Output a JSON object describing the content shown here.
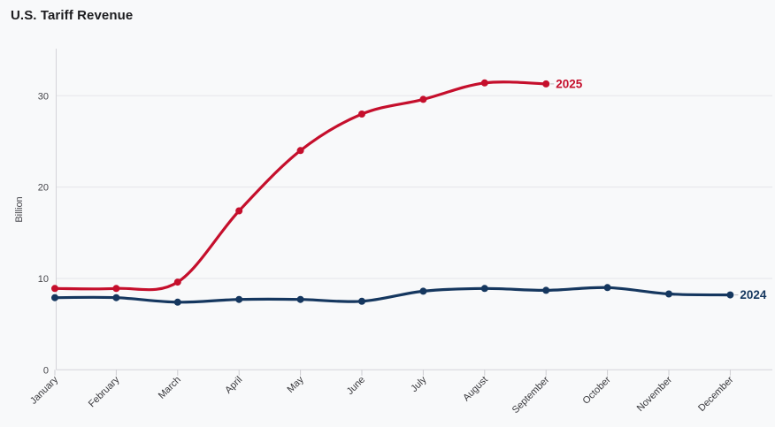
{
  "page": {
    "background_color": "#f8f9fa"
  },
  "chart_data": {
    "type": "line",
    "title": "U.S. Tariff Revenue",
    "xlabel": "",
    "ylabel": "Billion",
    "categories": [
      "January",
      "February",
      "March",
      "April",
      "May",
      "June",
      "July",
      "August",
      "September",
      "October",
      "November",
      "December"
    ],
    "yticks": [
      0,
      10,
      20,
      30
    ],
    "ylim": [
      0,
      35
    ],
    "grid": "horizontal",
    "legend_position": "inline-end-of-line-labels",
    "line_style": "smooth-spline-with-point-markers",
    "series": [
      {
        "name": "2025",
        "color": "#c50f2c",
        "values": [
          8.9,
          8.9,
          9.6,
          17.4,
          24.0,
          28.0,
          29.6,
          31.4,
          31.3
        ]
      },
      {
        "name": "2024",
        "color": "#15375f",
        "values": [
          7.9,
          7.9,
          7.4,
          7.7,
          7.7,
          7.5,
          8.6,
          8.9,
          8.7,
          9.0,
          8.3,
          8.2
        ]
      }
    ],
    "style": {
      "title_color": "#1d1d20",
      "grid_color": "#e5e5e9",
      "axis_line_color": "#d4d4d9",
      "tick_color": "#cdcdd2",
      "y_tick_label_color": "#45454a",
      "x_tick_label_color": "#38383c",
      "ylabel_color": "#45454a",
      "label_connector_color": "#b8b8bd"
    }
  }
}
